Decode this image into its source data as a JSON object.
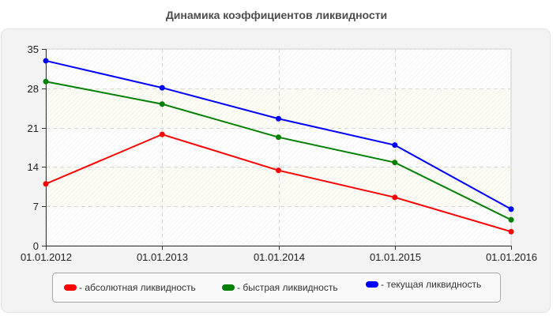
{
  "chart_data": {
    "type": "line",
    "title": "Динамика коэффициентов ликвидности",
    "xlabel": "",
    "ylabel": "",
    "categories": [
      "01.01.2012",
      "01.01.2013",
      "01.01.2014",
      "01.01.2015",
      "01.01.2016"
    ],
    "yticks": [
      "0",
      "7",
      "14",
      "21",
      "28",
      "35"
    ],
    "ylim": [
      0,
      35
    ],
    "grid": true,
    "legend_position": "bottom",
    "series": [
      {
        "name": "абсолютная ликвидность",
        "color": "#ff0000",
        "values": [
          11.0,
          19.8,
          13.4,
          8.6,
          2.5
        ]
      },
      {
        "name": "быстрая ликвидность",
        "color": "#008000",
        "values": [
          29.2,
          25.2,
          19.3,
          14.8,
          4.6
        ]
      },
      {
        "name": "текущая ликвидность",
        "color": "#0000ff",
        "values": [
          32.9,
          28.1,
          22.6,
          17.9,
          6.5
        ]
      }
    ]
  },
  "legend": {
    "items": [
      {
        "label": "- абсолютная ликвидность",
        "color": "#ff0000"
      },
      {
        "label": "- быстрая ликвидность",
        "color": "#008000"
      },
      {
        "label": "- текущая ликвидность",
        "color": "#0000ff"
      }
    ]
  }
}
